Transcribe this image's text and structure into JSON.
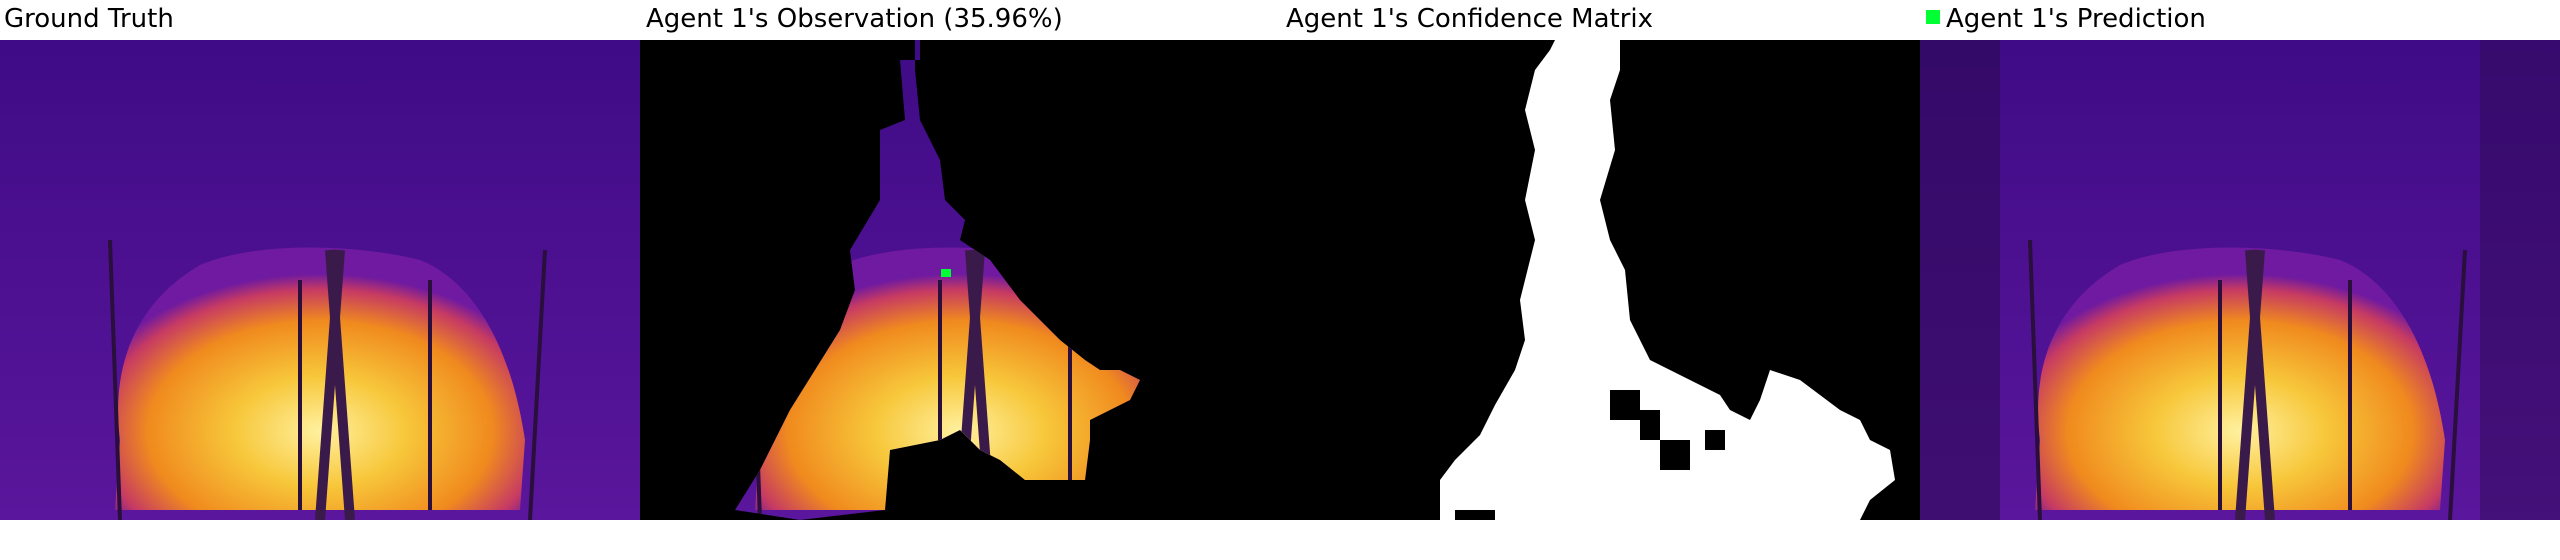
{
  "panels": [
    {
      "title": "Ground Truth"
    },
    {
      "title": "Agent 1's Observation (35.96%)"
    },
    {
      "title": "Agent 1's Confidence Matrix"
    },
    {
      "title": "Agent 1's Prediction"
    }
  ],
  "colors": {
    "background": "#4a0c92",
    "hot": "#f7c73a",
    "mask": "#000000",
    "confident": "#ffffff",
    "marker": "#00ff33"
  }
}
